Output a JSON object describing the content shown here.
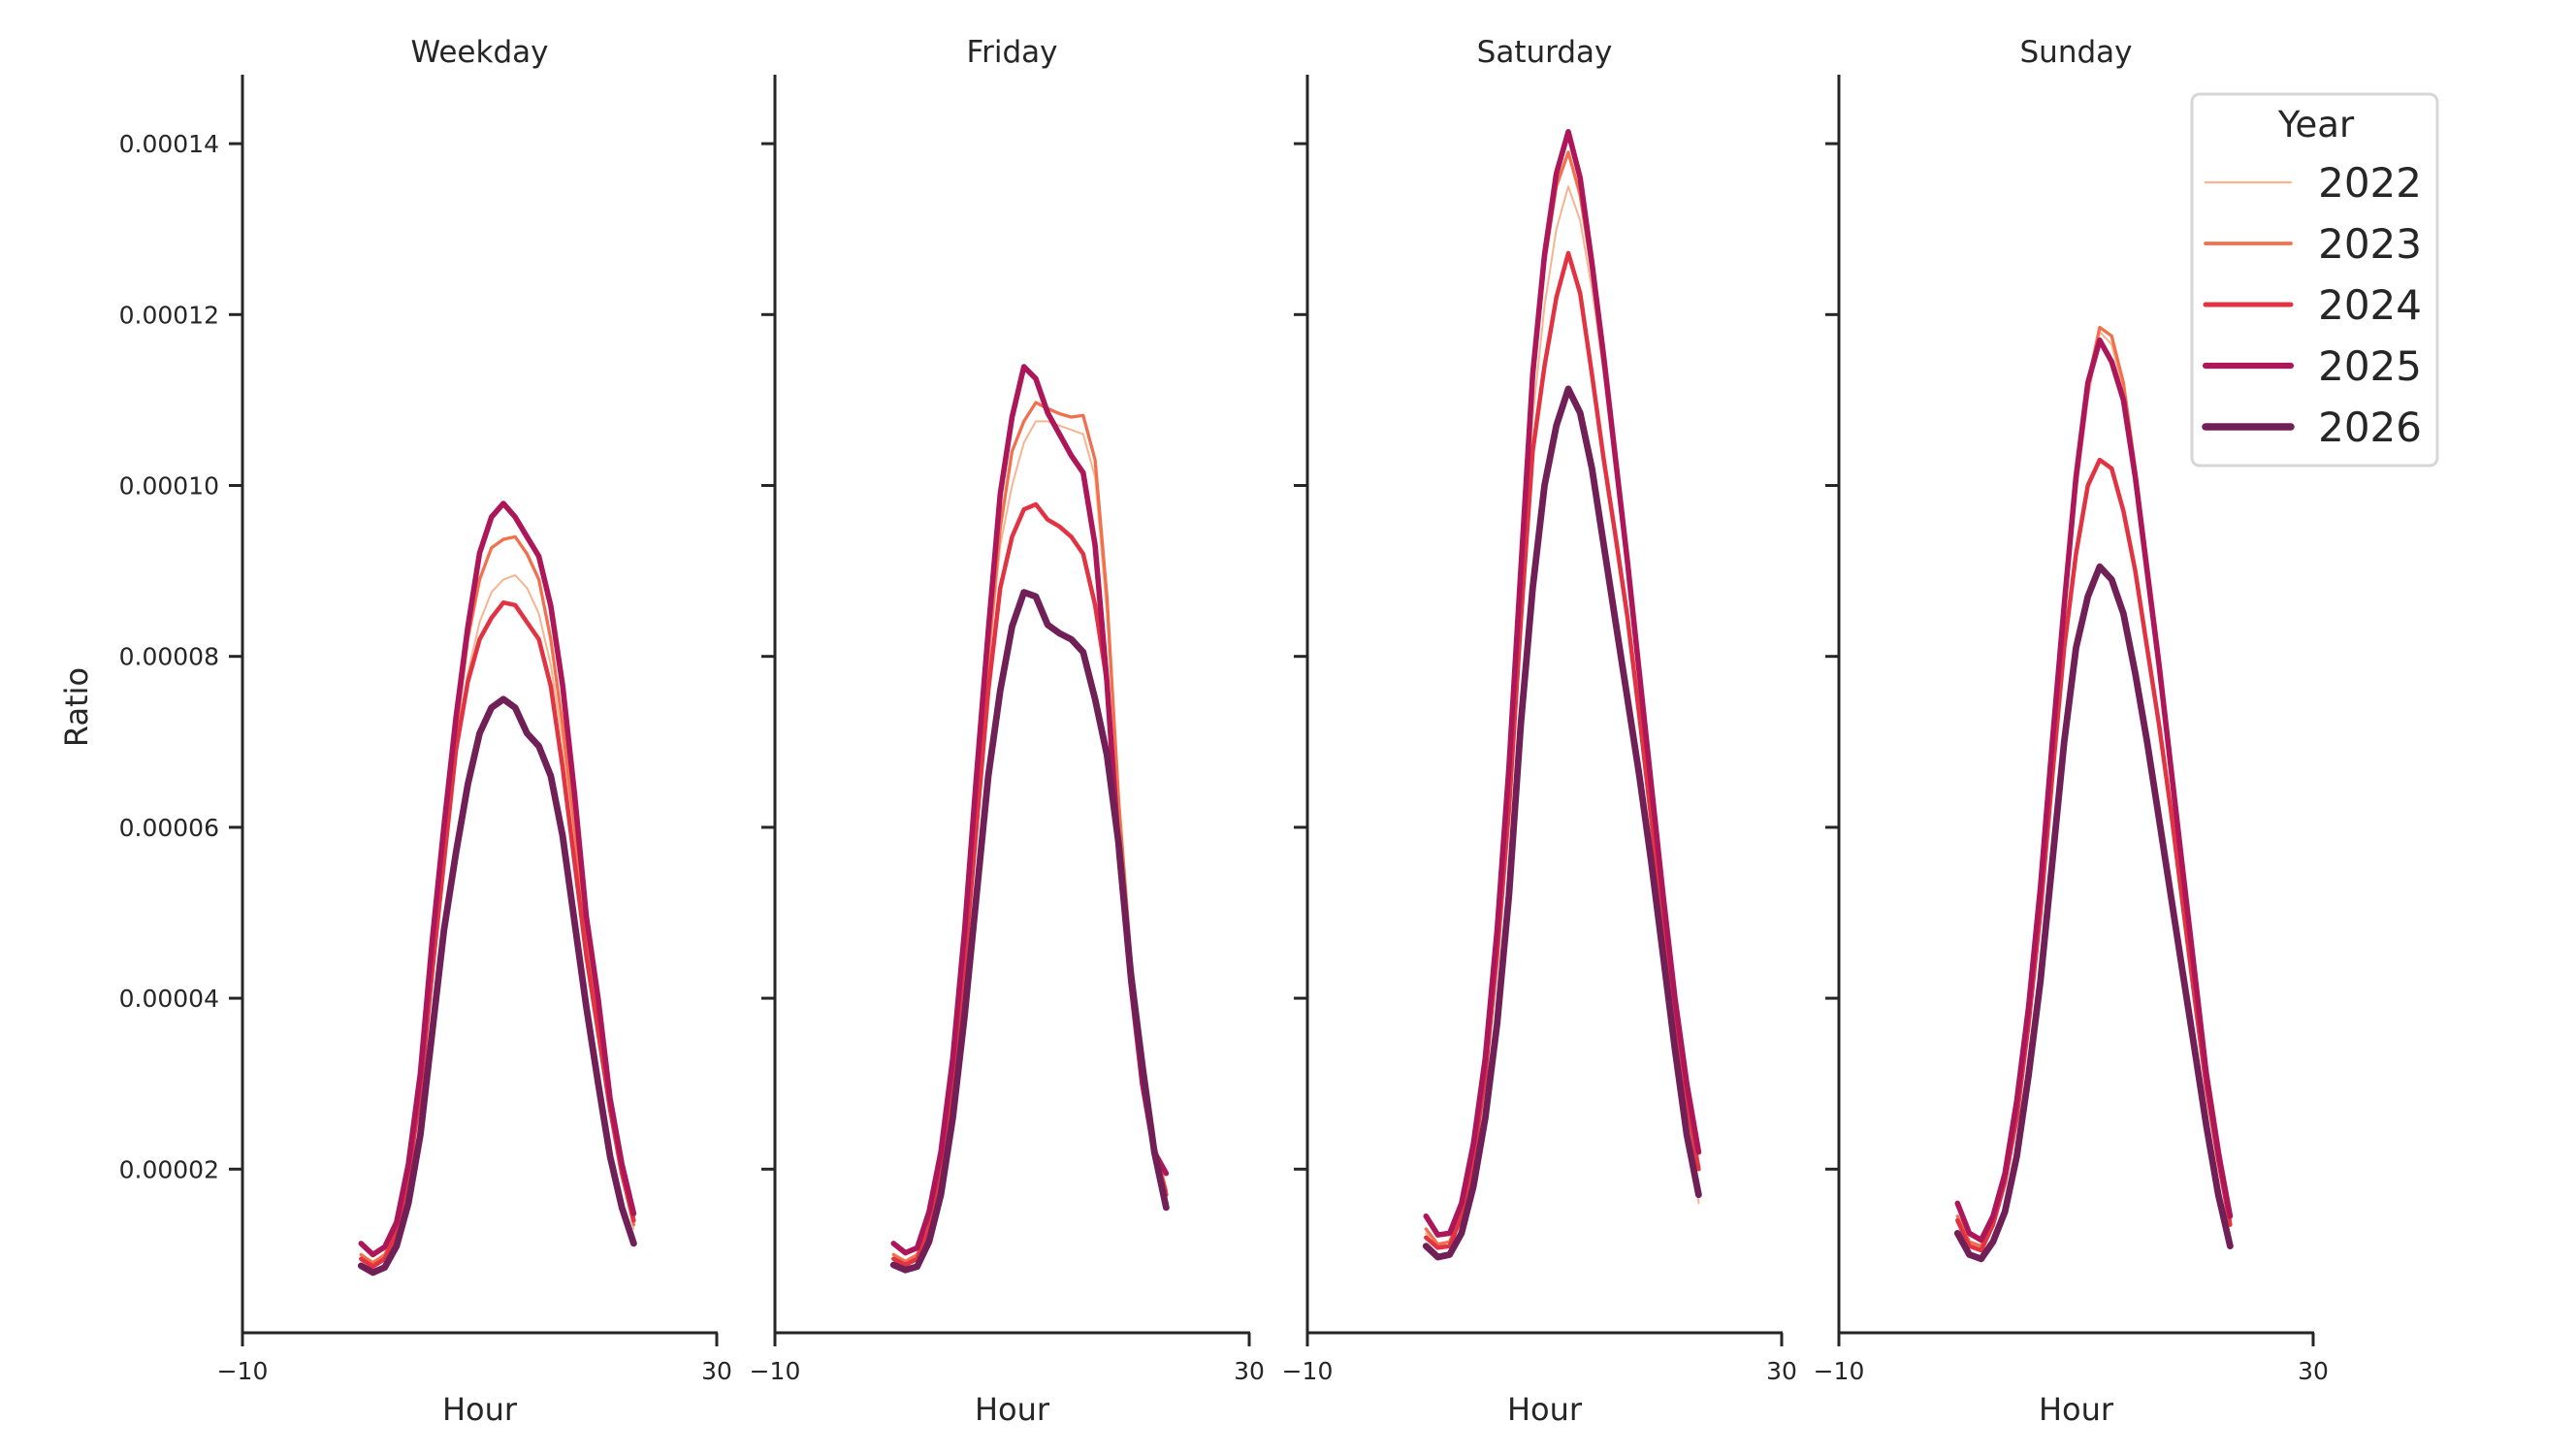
{
  "chart_data": {
    "type": "line",
    "xlabel": "Hour",
    "ylabel": "Ratio",
    "xlim": [
      -10,
      30
    ],
    "ylim": [
      -1.3e-06,
      0.000148
    ],
    "x_ticks": [
      "−10",
      "30"
    ],
    "x_tick_values": [
      -10,
      30
    ],
    "y_ticks": [
      "0.00002",
      "0.00004",
      "0.00006",
      "0.00008",
      "0.00010",
      "0.00012",
      "0.00014"
    ],
    "y_tick_values": [
      2e-05,
      4e-05,
      6e-05,
      8e-05,
      0.0001,
      0.00012,
      0.00014
    ],
    "grid": false,
    "shared_y": true,
    "legend": {
      "title": "Year",
      "placement": "top-right",
      "entries": [
        "2022",
        "2023",
        "2024",
        "2025",
        "2026"
      ]
    },
    "series_colors": {
      "2022": "#f7b58f",
      "2023": "#f1704e",
      "2024": "#e13342",
      "2025": "#ad1759",
      "2026": "#701f57"
    },
    "x": [
      0,
      1,
      2,
      3,
      4,
      5,
      6,
      7,
      8,
      9,
      10,
      11,
      12,
      13,
      14,
      15,
      16,
      17,
      18,
      19,
      20,
      21,
      22,
      23
    ],
    "panels": [
      {
        "title": "Weekday",
        "series": [
          {
            "name": "2022",
            "values": [
              1e-05,
              9.2e-06,
              1e-05,
              1.3e-05,
              1.95e-05,
              3e-05,
              4.4e-05,
              5.7e-05,
              6.8e-05,
              7.8e-05,
              8.4e-05,
              8.75e-05,
              8.9e-05,
              8.95e-05,
              8.8e-05,
              8.5e-05,
              7.9e-05,
              7e-05,
              5.9e-05,
              4.7e-05,
              3.7e-05,
              2.7e-05,
              1.9e-05,
              1.3e-05
            ]
          },
          {
            "name": "2023",
            "values": [
              1e-05,
              9e-06,
              1e-05,
              1.3e-05,
              1.95e-05,
              3e-05,
              4.5e-05,
              5.9e-05,
              7.1e-05,
              8.2e-05,
              8.9e-05,
              9.27e-05,
              9.37e-05,
              9.4e-05,
              9.2e-05,
              8.9e-05,
              8.2e-05,
              7.2e-05,
              6e-05,
              4.7e-05,
              3.7e-05,
              2.75e-05,
              1.95e-05,
              1.35e-05
            ]
          },
          {
            "name": "2024",
            "values": [
              9.5e-06,
              8.6e-06,
              9.5e-06,
              1.25e-05,
              1.9e-05,
              2.9e-05,
              4.3e-05,
              5.6e-05,
              6.9e-05,
              7.7e-05,
              8.2e-05,
              8.45e-05,
              8.63e-05,
              8.6e-05,
              8.4e-05,
              8.2e-05,
              7.65e-05,
              6.7e-05,
              5.6e-05,
              4.5e-05,
              3.6e-05,
              2.7e-05,
              1.95e-05,
              1.4e-05
            ]
          },
          {
            "name": "2025",
            "values": [
              1.13e-05,
              1e-05,
              1.09e-05,
              1.38e-05,
              2.06e-05,
              3.12e-05,
              4.67e-05,
              6.02e-05,
              7.28e-05,
              8.34e-05,
              9.21e-05,
              9.63e-05,
              9.79e-05,
              9.63e-05,
              9.4e-05,
              9.17e-05,
              8.59e-05,
              7.66e-05,
              6.4e-05,
              4.96e-05,
              3.99e-05,
              2.83e-05,
              2.06e-05,
              1.48e-05
            ]
          },
          {
            "name": "2026",
            "values": [
              8.7e-06,
              7.9e-06,
              8.5e-06,
              1.1e-05,
              1.6e-05,
              2.4e-05,
              3.6e-05,
              4.8e-05,
              5.7e-05,
              6.5e-05,
              7.1e-05,
              7.4e-05,
              7.5e-05,
              7.4e-05,
              7.1e-05,
              6.95e-05,
              6.6e-05,
              5.9e-05,
              4.9e-05,
              3.9e-05,
              3e-05,
              2.15e-05,
              1.55e-05,
              1.13e-05
            ]
          }
        ]
      },
      {
        "title": "Friday",
        "series": [
          {
            "name": "2022",
            "values": [
              1e-05,
              9.3e-06,
              1e-05,
              1.4e-05,
              2.1e-05,
              3.1e-05,
              4.6e-05,
              6.2e-05,
              7.9e-05,
              9.3e-05,
              0.0001,
              0.000105,
              0.0001075,
              0.0001075,
              0.000107,
              0.0001065,
              0.000106,
              0.000101,
              8.5e-05,
              6.2e-05,
              4.4e-05,
              3.1e-05,
              2.25e-05,
              1.7e-05
            ]
          },
          {
            "name": "2023",
            "values": [
              1e-05,
              9.2e-06,
              1e-05,
              1.4e-05,
              2.1e-05,
              3.1e-05,
              4.6e-05,
              6.3e-05,
              8e-05,
              9.5e-05,
              0.000104,
              0.0001075,
              0.0001097,
              0.000109,
              0.0001084,
              0.000108,
              0.0001082,
              0.000103,
              8.7e-05,
              6.3e-05,
              4.5e-05,
              3.2e-05,
              2.3e-05,
              1.75e-05
            ]
          },
          {
            "name": "2024",
            "values": [
              9.5e-06,
              8.8e-06,
              9.5e-06,
              1.3e-05,
              2e-05,
              3e-05,
              4.4e-05,
              6e-05,
              7.6e-05,
              8.8e-05,
              9.4e-05,
              9.72e-05,
              9.78e-05,
              9.6e-05,
              9.52e-05,
              9.4e-05,
              9.2e-05,
              8.6e-05,
              7.7e-05,
              5.8e-05,
              4.2e-05,
              3e-05,
              2.2e-05,
              1.7e-05
            ]
          },
          {
            "name": "2025",
            "values": [
              1.13e-05,
              1.02e-05,
              1.08e-05,
              1.5e-05,
              2.2e-05,
              3.3e-05,
              4.8e-05,
              6.6e-05,
              8.3e-05,
              9.9e-05,
              0.000108,
              0.0001139,
              0.0001125,
              0.0001085,
              0.000106,
              0.0001035,
              0.0001015,
              9.3e-05,
              7.7e-05,
              5.7e-05,
              4.2e-05,
              3e-05,
              2.2e-05,
              1.95e-05
            ]
          },
          {
            "name": "2026",
            "values": [
              8.8e-06,
              8.2e-06,
              8.6e-06,
              1.15e-05,
              1.7e-05,
              2.6e-05,
              3.8e-05,
              5.2e-05,
              6.6e-05,
              7.6e-05,
              8.35e-05,
              8.75e-05,
              8.7e-05,
              8.37e-05,
              8.27e-05,
              8.2e-05,
              8.05e-05,
              7.5e-05,
              6.85e-05,
              5.8e-05,
              4.3e-05,
              3.2e-05,
              2.2e-05,
              1.55e-05
            ]
          }
        ]
      },
      {
        "title": "Saturday",
        "series": [
          {
            "name": "2022",
            "values": [
              1.25e-05,
              1.08e-05,
              1.1e-05,
              1.45e-05,
              2.15e-05,
              3.1e-05,
              4.6e-05,
              6.4e-05,
              8.6e-05,
              0.000108,
              0.000121,
              0.00013,
              0.000135,
              0.000131,
              0.000123,
              0.000113,
              0.000102,
              9e-05,
              7.7e-05,
              6.35e-05,
              5e-05,
              3.8e-05,
              2.8e-05,
              1.6e-05
            ]
          },
          {
            "name": "2023",
            "values": [
              1.3e-05,
              1.12e-05,
              1.15e-05,
              1.5e-05,
              2.2e-05,
              3.2e-05,
              4.7e-05,
              6.6e-05,
              8.9e-05,
              0.000112,
              0.000126,
              0.000135,
              0.000139,
              0.000134,
              0.000125,
              0.000114,
              0.000103,
              9.1e-05,
              7.8e-05,
              6.45e-05,
              5.1e-05,
              3.9e-05,
              2.9e-05,
              2e-05
            ]
          },
          {
            "name": "2024",
            "values": [
              1.2e-05,
              1.08e-05,
              1.1e-05,
              1.45e-05,
              2.1e-05,
              3.1e-05,
              4.5e-05,
              6.2e-05,
              8.4e-05,
              0.000104,
              0.000114,
              0.000122,
              0.0001272,
              0.0001225,
              0.000113,
              0.000103,
              9.4e-05,
              8.45e-05,
              7.3e-05,
              6.1e-05,
              4.9e-05,
              3.75e-05,
              2.8e-05,
              2e-05
            ]
          },
          {
            "name": "2025",
            "values": [
              1.45e-05,
              1.23e-05,
              1.25e-05,
              1.6e-05,
              2.3e-05,
              3.3e-05,
              4.8e-05,
              6.7e-05,
              9e-05,
              0.000113,
              0.000127,
              0.0001365,
              0.0001414,
              0.000136,
              0.000126,
              0.000115,
              0.000103,
              9.1e-05,
              7.8e-05,
              6.5e-05,
              5.2e-05,
              4e-05,
              3e-05,
              2.2e-05
            ]
          },
          {
            "name": "2026",
            "values": [
              1.1e-05,
              9.7e-06,
              1e-05,
              1.25e-05,
              1.8e-05,
              2.6e-05,
              3.7e-05,
              5.2e-05,
              7.2e-05,
              8.8e-05,
              0.0001,
              0.000107,
              0.0001113,
              0.0001085,
              0.000102,
              9.3e-05,
              8.4e-05,
              7.5e-05,
              6.6e-05,
              5.6e-05,
              4.5e-05,
              3.4e-05,
              2.4e-05,
              1.7e-05
            ]
          }
        ]
      },
      {
        "title": "Sunday",
        "series": [
          {
            "name": "2022",
            "values": [
              1.4e-05,
              1.12e-05,
              1.07e-05,
              1.35e-05,
              1.85e-05,
              2.65e-05,
              3.75e-05,
              5.1e-05,
              6.8e-05,
              8.4e-05,
              9.9e-05,
              0.00011,
              0.000118,
              0.0001165,
              0.000111,
              0.000101,
              9e-05,
              7.9e-05,
              6.7e-05,
              5.5e-05,
              4.3e-05,
              3.1e-05,
              2.2e-05,
              1.35e-05
            ]
          },
          {
            "name": "2023",
            "values": [
              1.45e-05,
              1.15e-05,
              1.1e-05,
              1.4e-05,
              1.9e-05,
              2.7e-05,
              3.8e-05,
              5.2e-05,
              6.9e-05,
              8.5e-05,
              0.0001,
              0.000112,
              0.0001185,
              0.0001175,
              0.000112,
              0.000102,
              9.1e-05,
              8e-05,
              6.8e-05,
              5.6e-05,
              4.4e-05,
              3.2e-05,
              2.3e-05,
              1.4e-05
            ]
          },
          {
            "name": "2024",
            "values": [
              1.4e-05,
              1.1e-05,
              1.05e-05,
              1.35e-05,
              1.85e-05,
              2.6e-05,
              3.7e-05,
              5e-05,
              6.6e-05,
              8.1e-05,
              9.2e-05,
              0.0001,
              0.000103,
              0.000102,
              9.7e-05,
              9e-05,
              8.1e-05,
              7.2e-05,
              6.2e-05,
              5.1e-05,
              4e-05,
              2.95e-05,
              2.1e-05,
              1.35e-05
            ]
          },
          {
            "name": "2025",
            "values": [
              1.6e-05,
              1.25e-05,
              1.17e-05,
              1.45e-05,
              1.95e-05,
              2.8e-05,
              3.9e-05,
              5.3e-05,
              7e-05,
              8.6e-05,
              0.000101,
              0.000112,
              0.000117,
              0.0001145,
              0.00011,
              0.000101,
              9e-05,
              7.9e-05,
              6.7e-05,
              5.5e-05,
              4.3e-05,
              3.1e-05,
              2.2e-05,
              1.45e-05
            ]
          },
          {
            "name": "2026",
            "values": [
              1.25e-05,
              1e-05,
              9.5e-06,
              1.15e-05,
              1.5e-05,
              2.15e-05,
              3.1e-05,
              4.2e-05,
              5.6e-05,
              7e-05,
              8.1e-05,
              8.7e-05,
              9.05e-05,
              8.9e-05,
              8.5e-05,
              7.8e-05,
              7e-05,
              6.1e-05,
              5.2e-05,
              4.3e-05,
              3.4e-05,
              2.5e-05,
              1.7e-05,
              1.1e-05
            ]
          }
        ]
      }
    ]
  }
}
